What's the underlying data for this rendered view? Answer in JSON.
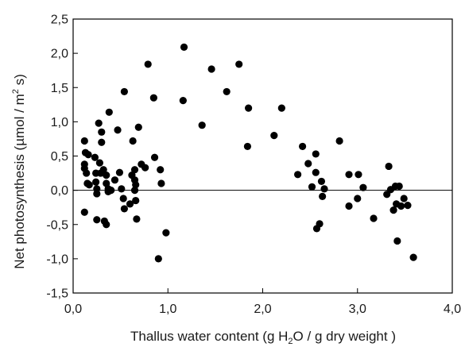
{
  "chart_data": {
    "type": "scatter",
    "title": "",
    "xlabel": {
      "prefix": "Thallus water content (g H",
      "sub": "2",
      "suffix": "O / g dry weight )"
    },
    "ylabel": {
      "prefix": "Net photosynthesis (µmol / m",
      "sup": "2",
      "suffix": " s)"
    },
    "xlim": [
      0,
      4
    ],
    "ylim": [
      -1.5,
      2.5
    ],
    "xticks": [
      {
        "value": 0,
        "label": "0,0"
      },
      {
        "value": 1,
        "label": "1,0"
      },
      {
        "value": 2,
        "label": "2,0"
      },
      {
        "value": 3,
        "label": "3,0"
      },
      {
        "value": 4,
        "label": "4,0"
      }
    ],
    "yticks": [
      {
        "value": -1.5,
        "label": "-1,5"
      },
      {
        "value": -1.0,
        "label": "-1,0"
      },
      {
        "value": -0.5,
        "label": "-0,5"
      },
      {
        "value": 0.0,
        "label": "0,0"
      },
      {
        "value": 0.5,
        "label": "0,5"
      },
      {
        "value": 1.0,
        "label": "1,0"
      },
      {
        "value": 1.5,
        "label": "1,5"
      },
      {
        "value": 2.0,
        "label": "2,0"
      },
      {
        "value": 2.5,
        "label": "2,5"
      }
    ],
    "zero_line": true,
    "grid": false,
    "marker_color": "#000000",
    "points": [
      [
        0.12,
        0.72
      ],
      [
        0.12,
        0.38
      ],
      [
        0.12,
        0.32
      ],
      [
        0.12,
        -0.32
      ],
      [
        0.13,
        0.55
      ],
      [
        0.14,
        0.25
      ],
      [
        0.15,
        0.1
      ],
      [
        0.16,
        0.52
      ],
      [
        0.17,
        0.08
      ],
      [
        0.23,
        0.48
      ],
      [
        0.24,
        0.25
      ],
      [
        0.24,
        0.12
      ],
      [
        0.25,
        -0.05
      ],
      [
        0.25,
        0.02
      ],
      [
        0.25,
        -0.43
      ],
      [
        0.27,
        0.98
      ],
      [
        0.28,
        0.4
      ],
      [
        0.29,
        0.25
      ],
      [
        0.3,
        0.7
      ],
      [
        0.3,
        0.85
      ],
      [
        0.32,
        0.3
      ],
      [
        0.33,
        -0.45
      ],
      [
        0.35,
        -0.5
      ],
      [
        0.35,
        0.22
      ],
      [
        0.35,
        0.1
      ],
      [
        0.37,
        0.02
      ],
      [
        0.37,
        -0.02
      ],
      [
        0.38,
        1.14
      ],
      [
        0.4,
        0.0
      ],
      [
        0.44,
        0.15
      ],
      [
        0.47,
        0.88
      ],
      [
        0.49,
        0.26
      ],
      [
        0.51,
        0.02
      ],
      [
        0.53,
        -0.12
      ],
      [
        0.54,
        1.44
      ],
      [
        0.54,
        -0.27
      ],
      [
        0.6,
        -0.2
      ],
      [
        0.62,
        0.22
      ],
      [
        0.63,
        0.72
      ],
      [
        0.65,
        0.3
      ],
      [
        0.65,
        0.15
      ],
      [
        0.65,
        0.0
      ],
      [
        0.66,
        0.08
      ],
      [
        0.66,
        -0.15
      ],
      [
        0.67,
        -0.42
      ],
      [
        0.69,
        0.92
      ],
      [
        0.72,
        0.38
      ],
      [
        0.76,
        0.33
      ],
      [
        0.79,
        1.84
      ],
      [
        0.85,
        1.35
      ],
      [
        0.86,
        0.48
      ],
      [
        0.9,
        -1.0
      ],
      [
        0.92,
        0.3
      ],
      [
        0.93,
        0.1
      ],
      [
        0.98,
        -0.62
      ],
      [
        1.16,
        1.31
      ],
      [
        1.17,
        2.09
      ],
      [
        1.36,
        0.95
      ],
      [
        1.46,
        1.77
      ],
      [
        1.62,
        1.44
      ],
      [
        1.75,
        1.84
      ],
      [
        1.84,
        0.64
      ],
      [
        1.85,
        1.2
      ],
      [
        2.12,
        0.8
      ],
      [
        2.2,
        1.2
      ],
      [
        2.37,
        0.23
      ],
      [
        2.42,
        0.64
      ],
      [
        2.48,
        0.39
      ],
      [
        2.52,
        0.05
      ],
      [
        2.56,
        0.53
      ],
      [
        2.56,
        0.26
      ],
      [
        2.57,
        -0.56
      ],
      [
        2.6,
        -0.49
      ],
      [
        2.62,
        0.13
      ],
      [
        2.63,
        -0.09
      ],
      [
        2.65,
        0.02
      ],
      [
        2.81,
        0.72
      ],
      [
        2.91,
        0.23
      ],
      [
        2.91,
        -0.23
      ],
      [
        3.0,
        -0.12
      ],
      [
        3.01,
        0.23
      ],
      [
        3.06,
        0.04
      ],
      [
        3.17,
        -0.41
      ],
      [
        3.31,
        -0.06
      ],
      [
        3.33,
        0.35
      ],
      [
        3.35,
        0.01
      ],
      [
        3.38,
        -0.29
      ],
      [
        3.4,
        0.06
      ],
      [
        3.41,
        -0.2
      ],
      [
        3.42,
        -0.74
      ],
      [
        3.44,
        0.06
      ],
      [
        3.46,
        -0.23
      ],
      [
        3.49,
        -0.12
      ],
      [
        3.53,
        -0.22
      ],
      [
        3.59,
        -0.98
      ]
    ]
  }
}
